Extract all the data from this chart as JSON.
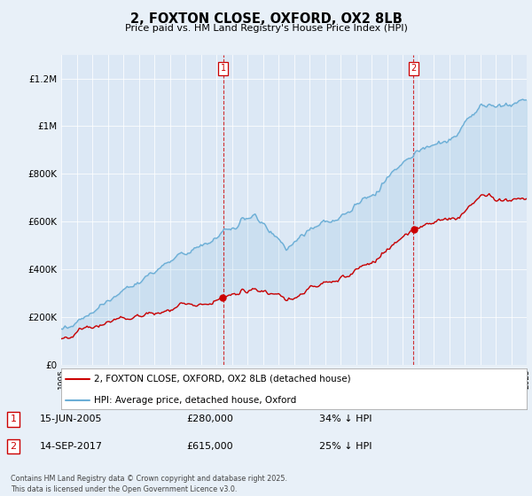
{
  "title": "2, FOXTON CLOSE, OXFORD, OX2 8LB",
  "subtitle": "Price paid vs. HM Land Registry's House Price Index (HPI)",
  "background_color": "#e8f0f8",
  "plot_bg_color": "#dce8f5",
  "hpi_color": "#6baed6",
  "property_color": "#cc0000",
  "marker1_date_x": 2005.45,
  "marker2_date_x": 2017.71,
  "marker1_price": 280000,
  "marker2_price": 615000,
  "legend_property": "2, FOXTON CLOSE, OXFORD, OX2 8LB (detached house)",
  "legend_hpi": "HPI: Average price, detached house, Oxford",
  "sale1_num": "1",
  "sale1_date": "15-JUN-2005",
  "sale1_price": "£280,000",
  "sale1_hpi": "34% ↓ HPI",
  "sale2_num": "2",
  "sale2_date": "14-SEP-2017",
  "sale2_price": "£615,000",
  "sale2_hpi": "25% ↓ HPI",
  "footnote": "Contains HM Land Registry data © Crown copyright and database right 2025.\nThis data is licensed under the Open Government Licence v3.0.",
  "xmin": 1995,
  "xmax": 2025,
  "ylim": [
    0,
    1300000
  ],
  "yticks": [
    0,
    200000,
    400000,
    600000,
    800000,
    1000000,
    1200000
  ],
  "ytick_labels": [
    "£0",
    "£200K",
    "£400K",
    "£600K",
    "£800K",
    "£1M",
    "£1.2M"
  ]
}
